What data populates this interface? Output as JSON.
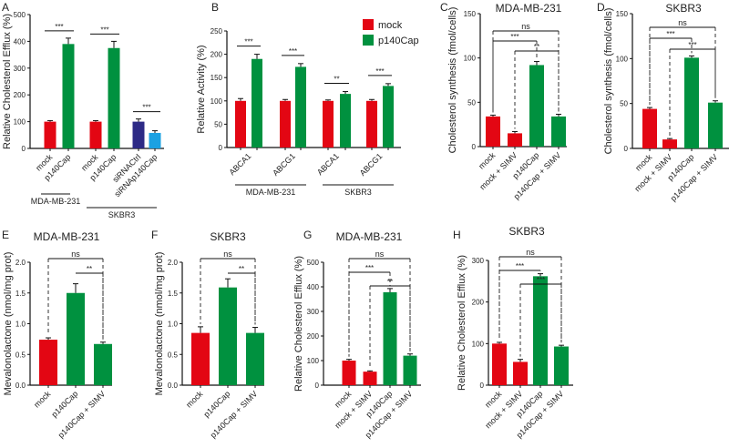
{
  "colors": {
    "red": "#e30613",
    "green": "#00913f",
    "navy": "#2d2a86",
    "blue": "#1ba1e2"
  },
  "legend": [
    {
      "label": "mock",
      "color": "red"
    },
    {
      "label": "p140Cap",
      "color": "green"
    }
  ],
  "chart_data": [
    {
      "id": "A",
      "letter": "A",
      "type": "bar",
      "title": "",
      "ylabel": "Relative Cholesterol Efflux (%)",
      "ylim": [
        0,
        500
      ],
      "yticks": [
        0,
        100,
        200,
        300,
        400,
        500
      ],
      "categories": [
        "mock",
        "p140Cap",
        "mock",
        "p140Cap",
        "siRNACtrl",
        "siRNAp140Cap"
      ],
      "values": [
        100,
        390,
        100,
        375,
        100,
        58
      ],
      "errors": [
        4,
        22,
        4,
        25,
        10,
        8
      ],
      "colors": [
        "red",
        "green",
        "red",
        "green",
        "navy",
        "blue"
      ],
      "groups": [
        {
          "label": "MDA-MB-231",
          "from": 0,
          "to": 1
        },
        {
          "label": "SKBR3",
          "from": 2,
          "to": 5
        }
      ],
      "significance": [
        {
          "from": 0,
          "to": 1,
          "label": "***"
        },
        {
          "from": 2,
          "to": 3,
          "label": "***"
        },
        {
          "from": 4,
          "to": 5,
          "label": "***"
        }
      ]
    },
    {
      "id": "B",
      "letter": "B",
      "type": "bar",
      "title": "",
      "ylabel": "Relative Activity (%)",
      "ylim": [
        0,
        250
      ],
      "yticks": [
        0,
        50,
        100,
        150,
        200,
        250
      ],
      "categories": [
        "ABCA1",
        "ABCG1",
        "ABCA1",
        "ABCG1"
      ],
      "series": [
        {
          "name": "mock",
          "values": [
            100,
            100,
            100,
            100
          ],
          "errors": [
            5,
            3,
            2,
            3
          ]
        },
        {
          "name": "p140Cap",
          "values": [
            190,
            173,
            115,
            132
          ],
          "errors": [
            10,
            7,
            5,
            5
          ]
        }
      ],
      "groups": [
        {
          "label": "MDA-MB-231",
          "from": 0,
          "to": 1
        },
        {
          "label": "SKBR3",
          "from": 2,
          "to": 3
        }
      ],
      "significance": [
        {
          "category": 0,
          "label": "***"
        },
        {
          "category": 1,
          "label": "***"
        },
        {
          "category": 2,
          "label": "**"
        },
        {
          "category": 3,
          "label": "***"
        }
      ]
    },
    {
      "id": "C",
      "letter": "C",
      "type": "bar",
      "title": "MDA-MB-231",
      "ylabel": "Cholesterol synthesis (fmol/cells)",
      "ylim": [
        0,
        150
      ],
      "yticks": [
        0,
        50,
        100,
        150
      ],
      "categories": [
        "mock",
        "mock + SIMV",
        "p140Cap",
        "p140Cap + SIMV"
      ],
      "values": [
        34,
        15,
        92,
        34
      ],
      "errors": [
        1.5,
        2,
        4,
        2.5
      ],
      "colors": [
        "red",
        "red",
        "green",
        "green"
      ],
      "significance": [
        {
          "from": 0,
          "to": 3,
          "label": "ns"
        },
        {
          "from": 0,
          "to": 2,
          "label": "***"
        },
        {
          "from": 1,
          "to": 3,
          "label": "**"
        }
      ]
    },
    {
      "id": "D",
      "letter": "D",
      "type": "bar",
      "title": "SKBR3",
      "ylabel": "Cholesterol synthesis (fmol/cells)",
      "ylim": [
        0,
        150
      ],
      "yticks": [
        0,
        50,
        100,
        150
      ],
      "categories": [
        "mock",
        "mock + SIMV",
        "p140Cap",
        "p140Cap + SIMV"
      ],
      "values": [
        44,
        10,
        101,
        51
      ],
      "errors": [
        1.5,
        1,
        2,
        2
      ],
      "colors": [
        "red",
        "red",
        "green",
        "green"
      ],
      "significance": [
        {
          "from": 0,
          "to": 3,
          "label": "ns"
        },
        {
          "from": 0,
          "to": 2,
          "label": "***"
        },
        {
          "from": 1,
          "to": 3,
          "label": "***"
        }
      ]
    },
    {
      "id": "E",
      "letter": "E",
      "type": "bar",
      "title": "MDA-MB-231",
      "ylabel": "Mevalonolactone (nmol/mg prot)",
      "ylim": [
        0,
        2.0
      ],
      "yticks": [
        "0.0",
        "0.5",
        "1.0",
        "1.5",
        "2.0"
      ],
      "categories": [
        "mock",
        "p140Cap",
        "p140Cap + SIMV"
      ],
      "values": [
        0.74,
        1.5,
        0.67
      ],
      "errors": [
        0.03,
        0.15,
        0.03
      ],
      "colors": [
        "red",
        "green",
        "green"
      ],
      "significance": [
        {
          "from": 0,
          "to": 2,
          "label": "ns"
        },
        {
          "from": 1,
          "to": 2,
          "label": "**"
        }
      ]
    },
    {
      "id": "F",
      "letter": "F",
      "type": "bar",
      "title": "SKBR3",
      "ylabel": "Mevalonolactone (nmol/mg prot)",
      "ylim": [
        0,
        2.0
      ],
      "yticks": [
        "0.0",
        "0.5",
        "1.0",
        "1.5",
        "2.0"
      ],
      "categories": [
        "mock",
        "p140Cap",
        "p140Cap + SIMV"
      ],
      "values": [
        0.85,
        1.59,
        0.85
      ],
      "errors": [
        0.1,
        0.14,
        0.09
      ],
      "colors": [
        "red",
        "green",
        "green"
      ],
      "significance": [
        {
          "from": 0,
          "to": 2,
          "label": "ns"
        },
        {
          "from": 1,
          "to": 2,
          "label": "**"
        }
      ]
    },
    {
      "id": "G",
      "letter": "G",
      "type": "bar",
      "title": "MDA-MB-231",
      "ylabel": "Relative Cholesterol Efflux (%)",
      "ylim": [
        0,
        500
      ],
      "yticks": [
        0,
        100,
        200,
        300,
        400,
        500
      ],
      "categories": [
        "mock",
        "mock + SIMV",
        "p140Cap",
        "p140Cap + SIMV"
      ],
      "values": [
        100,
        55,
        378,
        120
      ],
      "errors": [
        5,
        3,
        15,
        7
      ],
      "colors": [
        "red",
        "red",
        "green",
        "green"
      ],
      "significance": [
        {
          "from": 0,
          "to": 3,
          "label": "ns"
        },
        {
          "from": 0,
          "to": 2,
          "label": "***"
        },
        {
          "from": 1,
          "to": 3,
          "label": "**"
        }
      ]
    },
    {
      "id": "H",
      "letter": "H",
      "type": "bar",
      "title": "SKBR3",
      "ylabel": "Relative Cholesterol Efflux (%)",
      "ylim": [
        0,
        300
      ],
      "yticks": [
        0,
        100,
        200,
        300
      ],
      "categories": [
        "mock",
        "mock + SIMV",
        "p140Cap",
        "p140Cap + SIMV"
      ],
      "values": [
        100,
        56,
        262,
        93
      ],
      "errors": [
        3,
        6,
        6,
        3
      ],
      "colors": [
        "red",
        "red",
        "green",
        "green"
      ],
      "significance": [
        {
          "from": 0,
          "to": 3,
          "label": "ns"
        },
        {
          "from": 0,
          "to": 2,
          "label": "***"
        },
        {
          "from": 1,
          "to": 3,
          "label": "***"
        }
      ]
    }
  ]
}
